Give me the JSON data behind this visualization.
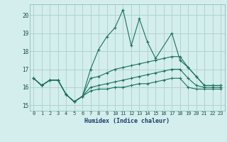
{
  "xlabel": "Humidex (Indice chaleur)",
  "x_values": [
    0,
    1,
    2,
    3,
    4,
    5,
    6,
    7,
    8,
    9,
    10,
    11,
    12,
    13,
    14,
    15,
    16,
    17,
    18,
    19,
    20,
    21,
    22,
    23
  ],
  "line1": [
    16.5,
    16.1,
    16.4,
    16.4,
    15.6,
    15.2,
    15.5,
    17.0,
    18.1,
    18.8,
    19.3,
    20.3,
    18.3,
    19.8,
    18.5,
    17.6,
    null,
    19.0,
    17.5,
    17.1,
    16.6,
    16.1,
    16.1,
    16.1
  ],
  "line2": [
    16.5,
    16.1,
    16.4,
    16.4,
    15.6,
    15.2,
    15.5,
    16.5,
    16.6,
    16.8,
    17.0,
    17.1,
    17.2,
    17.3,
    17.4,
    17.5,
    17.6,
    17.7,
    17.7,
    17.1,
    16.6,
    16.1,
    16.1,
    16.1
  ],
  "line3": [
    16.5,
    16.1,
    16.4,
    16.4,
    15.6,
    15.2,
    15.5,
    16.0,
    16.1,
    16.2,
    16.3,
    16.4,
    16.5,
    16.6,
    16.7,
    16.8,
    16.9,
    17.0,
    17.0,
    16.5,
    16.1,
    16.0,
    16.0,
    16.0
  ],
  "line4": [
    16.5,
    16.1,
    16.4,
    16.4,
    15.6,
    15.2,
    15.5,
    15.8,
    15.9,
    15.9,
    16.0,
    16.0,
    16.1,
    16.2,
    16.2,
    16.3,
    16.4,
    16.5,
    16.5,
    16.0,
    15.9,
    15.9,
    15.9,
    15.9
  ],
  "ylim": [
    14.7,
    20.6
  ],
  "xlim": [
    -0.5,
    23.5
  ],
  "yticks": [
    15,
    16,
    17,
    18,
    19,
    20
  ],
  "xticks": [
    0,
    1,
    2,
    3,
    4,
    5,
    6,
    7,
    8,
    9,
    10,
    11,
    12,
    13,
    14,
    15,
    16,
    17,
    18,
    19,
    20,
    21,
    22,
    23
  ],
  "line_color": "#1a7060",
  "bg_color": "#d4eeed",
  "grid_color": "#aed4d0"
}
